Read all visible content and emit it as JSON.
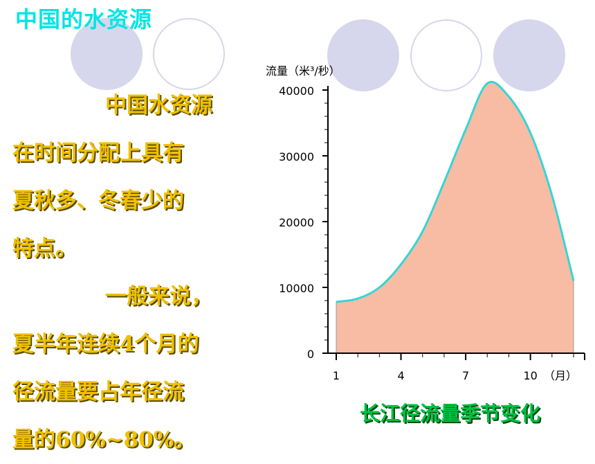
{
  "title": "中国的水资源",
  "text_lines": [
    {
      "text": "中国水资源",
      "indent": true
    },
    {
      "text": "在时间分配上具有",
      "indent": false
    },
    {
      "text": "夏秋多、冬春少的",
      "indent": false
    },
    {
      "text": "特点。",
      "indent": false
    },
    {
      "text": "一般来说，",
      "indent": true
    },
    {
      "text": "夏半年连续4个月的",
      "indent": false
    },
    {
      "text": "径流量要占年径流",
      "indent": false
    },
    {
      "text": "量的60%~80%。",
      "indent": false
    }
  ],
  "colors": {
    "title": "#00e5e5",
    "body_text": "#f0c000",
    "caption": "#00c040",
    "area_fill": "#f8bba4",
    "line": "#33d6d6",
    "decor": "#d6d6ec"
  },
  "chart_data": {
    "type": "area",
    "title": "长江径流量季节变化",
    "ylabel": "流量（米³/秒）",
    "xlabel": "（月）",
    "ylim": [
      0,
      40000
    ],
    "xlim": [
      0.5,
      12.5
    ],
    "xticks": [
      1,
      4,
      7,
      10
    ],
    "yticks": [
      0,
      10000,
      20000,
      30000,
      40000
    ],
    "ytick_labels": [
      "0",
      "10000",
      "20000",
      "30000",
      "40000"
    ],
    "xtick_labels": [
      "1",
      "4",
      "7",
      "10"
    ],
    "x": [
      1,
      2,
      3,
      4,
      5,
      6,
      7,
      8,
      9,
      10,
      11,
      12
    ],
    "y": [
      7800,
      8300,
      10000,
      13500,
      18500,
      26000,
      34000,
      41000,
      39000,
      33500,
      24000,
      11000
    ]
  }
}
